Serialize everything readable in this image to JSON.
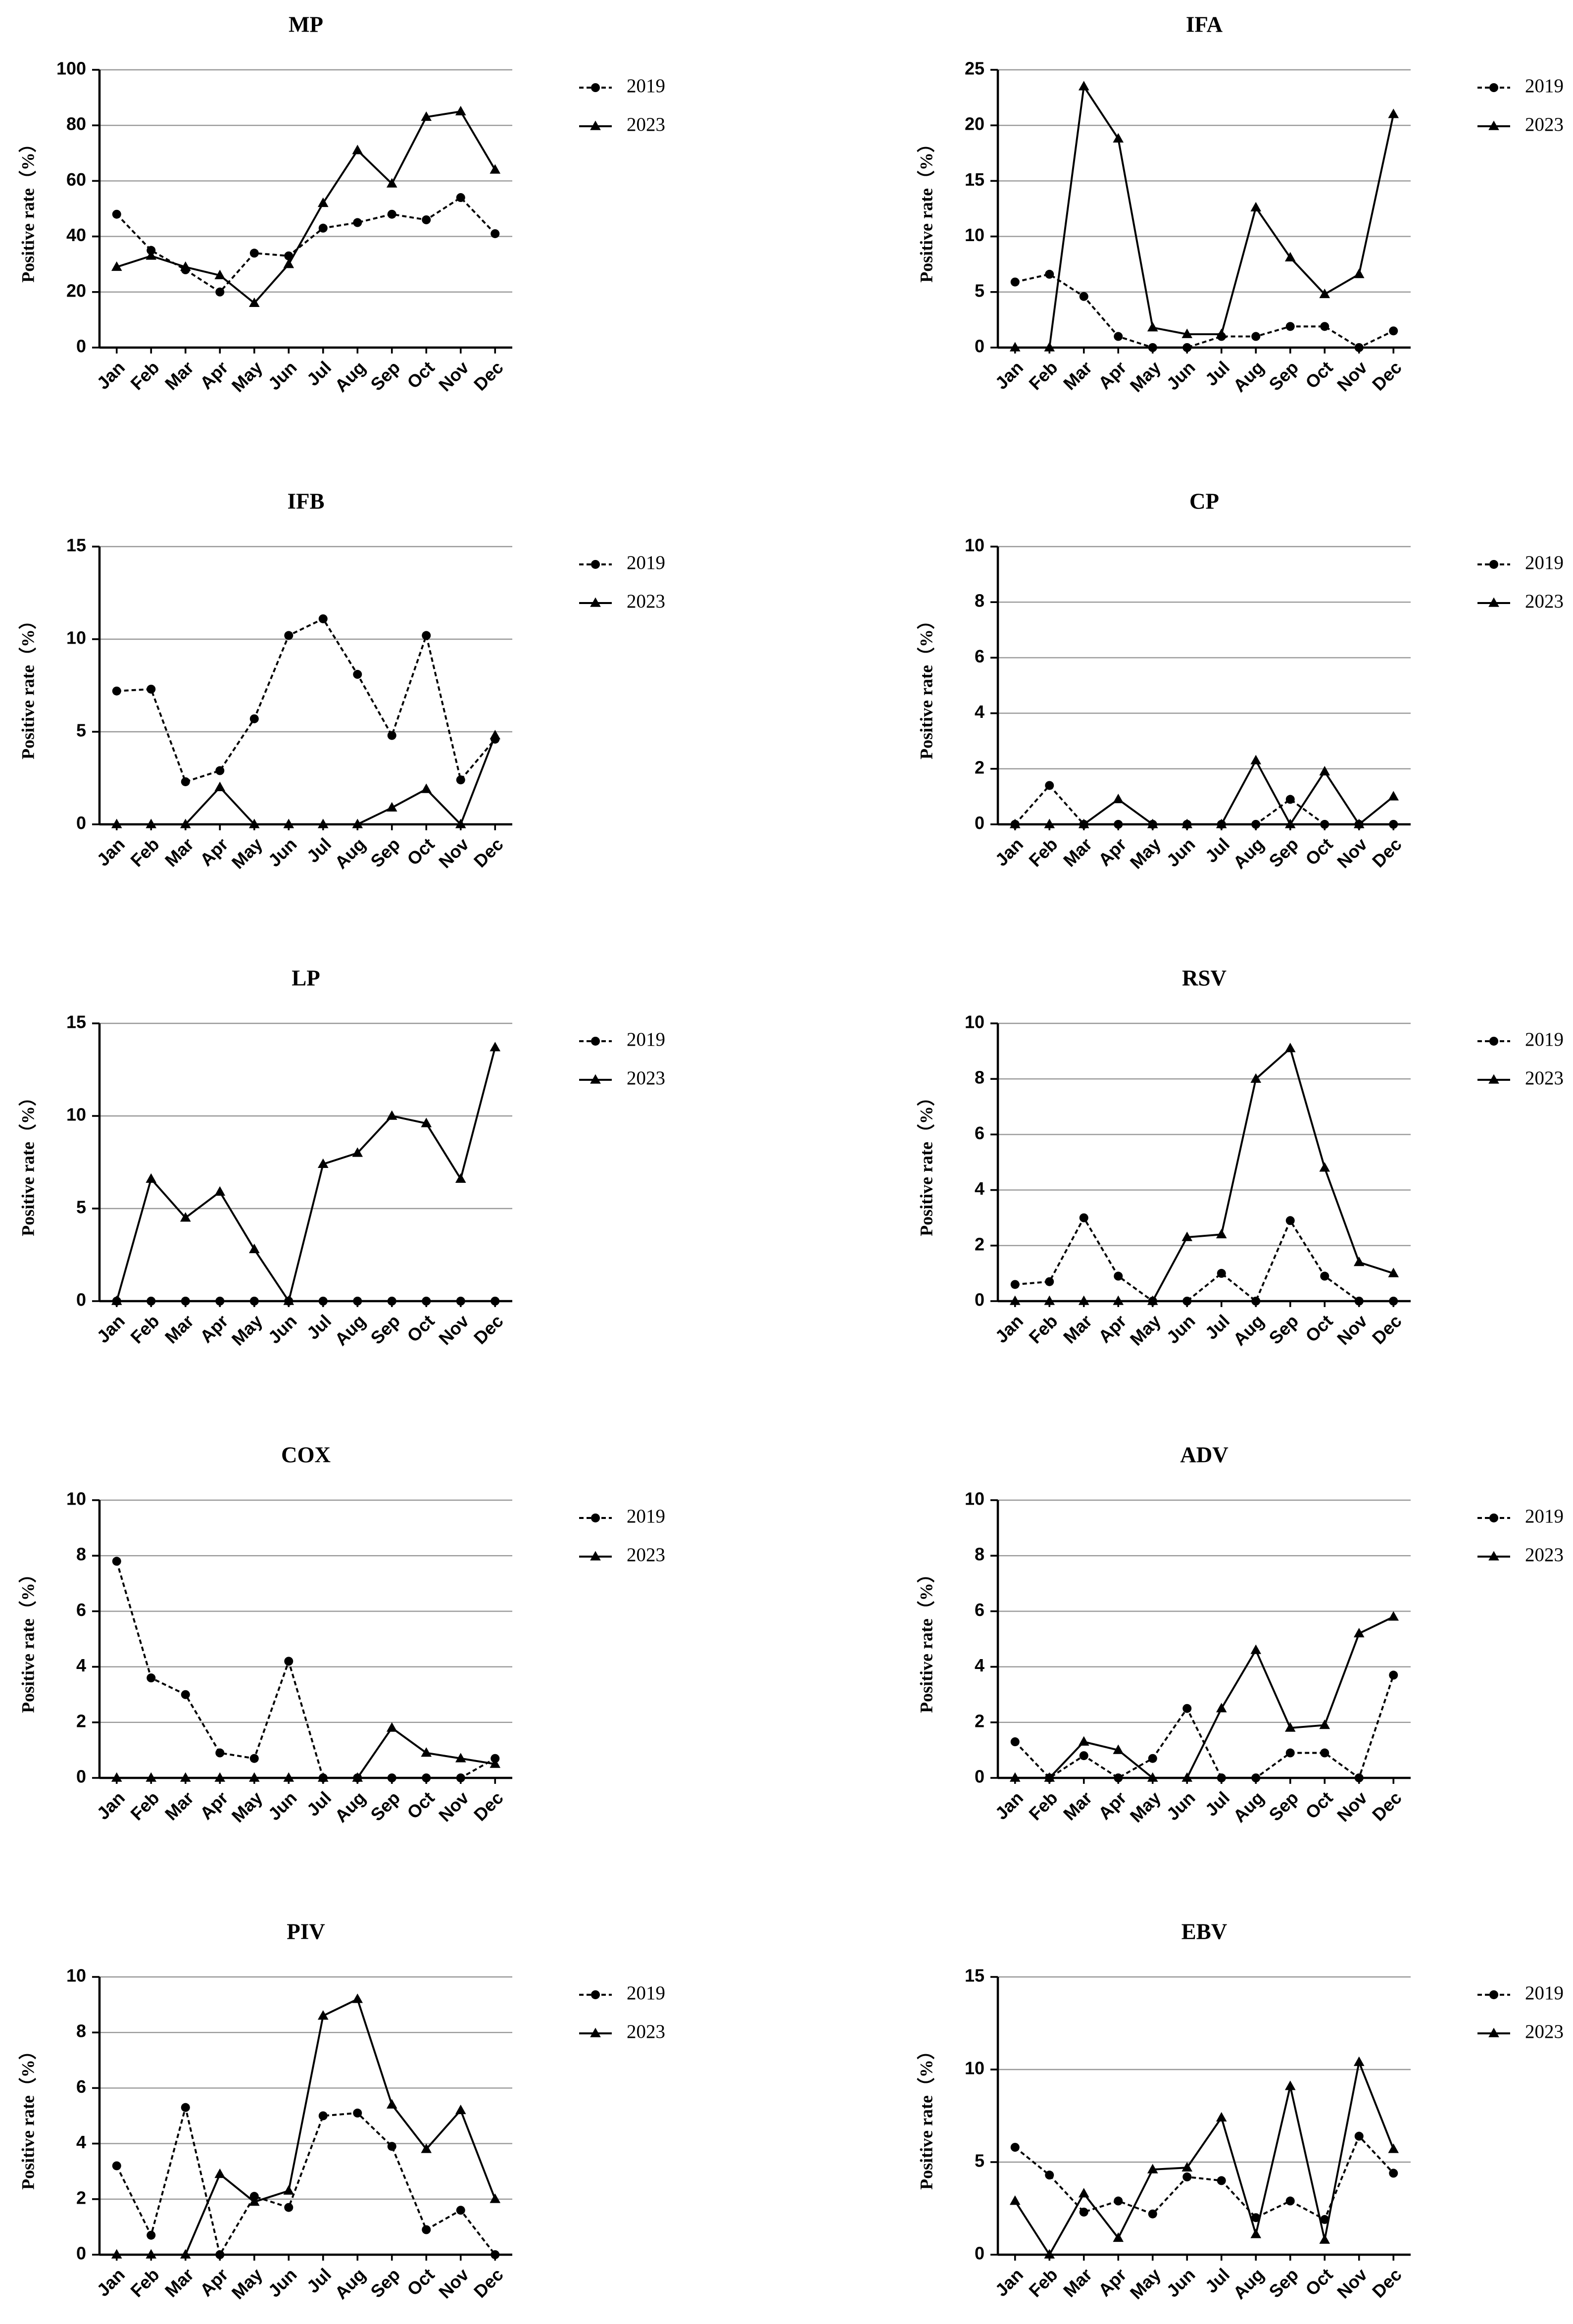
{
  "chart_data": [
    {
      "type": "line",
      "title": "MP",
      "ylabel": "Positive rate（%）",
      "categories": [
        "Jan",
        "Feb",
        "Mar",
        "Apr",
        "May",
        "Jun",
        "Jul",
        "Aug",
        "Sep",
        "Oct",
        "Nov",
        "Dec"
      ],
      "ylim": [
        0,
        100
      ],
      "yticks": [
        0,
        20,
        40,
        60,
        80,
        100
      ],
      "grid": true,
      "series": [
        {
          "name": "2019",
          "color": "#000000",
          "dashed": true,
          "marker": "circle",
          "values": [
            48,
            35,
            28,
            20,
            34,
            33,
            43,
            45,
            48,
            46,
            54,
            41
          ]
        },
        {
          "name": "2023",
          "color": "#000000",
          "dashed": false,
          "marker": "triangle",
          "values": [
            29,
            33,
            29,
            26,
            16,
            30,
            52,
            71,
            59,
            83,
            85,
            64
          ]
        }
      ]
    },
    {
      "type": "line",
      "title": "IFA",
      "ylabel": "Positive rate（%）",
      "categories": [
        "Jan",
        "Feb",
        "Mar",
        "Apr",
        "May",
        "Jun",
        "Jul",
        "Aug",
        "Sep",
        "Oct",
        "Nov",
        "Dec"
      ],
      "ylim": [
        0,
        25
      ],
      "yticks": [
        0,
        5,
        10,
        15,
        20,
        25
      ],
      "grid": true,
      "series": [
        {
          "name": "2019",
          "color": "#000000",
          "dashed": true,
          "marker": "circle",
          "values": [
            5.9,
            6.6,
            4.6,
            1.0,
            0,
            0,
            1.0,
            1.0,
            1.9,
            1.9,
            0,
            1.5
          ]
        },
        {
          "name": "2023",
          "color": "#000000",
          "dashed": false,
          "marker": "triangle",
          "values": [
            0,
            0,
            23.5,
            18.8,
            1.8,
            1.2,
            1.2,
            12.6,
            8.1,
            4.8,
            6.6,
            21
          ]
        }
      ]
    },
    {
      "type": "line",
      "title": "IFB",
      "ylabel": "Positive rate（%）",
      "categories": [
        "Jan",
        "Feb",
        "Mar",
        "Apr",
        "May",
        "Jun",
        "Jul",
        "Aug",
        "Sep",
        "Oct",
        "Nov",
        "Dec"
      ],
      "ylim": [
        0,
        15
      ],
      "yticks": [
        0,
        5,
        10,
        15
      ],
      "grid": true,
      "series": [
        {
          "name": "2019",
          "color": "#000000",
          "dashed": true,
          "marker": "circle",
          "values": [
            7.2,
            7.3,
            2.3,
            2.9,
            5.7,
            10.2,
            11.1,
            8.1,
            4.8,
            10.2,
            2.4,
            4.6
          ]
        },
        {
          "name": "2023",
          "color": "#000000",
          "dashed": false,
          "marker": "triangle",
          "values": [
            0,
            0,
            0,
            2.0,
            0,
            0,
            0,
            0,
            0.9,
            1.9,
            0,
            4.8
          ]
        }
      ]
    },
    {
      "type": "line",
      "title": "CP",
      "ylabel": "Positive rate（%）",
      "categories": [
        "Jan",
        "Feb",
        "Mar",
        "Apr",
        "May",
        "Jun",
        "Jul",
        "Aug",
        "Sep",
        "Oct",
        "Nov",
        "Dec"
      ],
      "ylim": [
        0,
        10
      ],
      "yticks": [
        0,
        2,
        4,
        6,
        8,
        10
      ],
      "grid": true,
      "series": [
        {
          "name": "2019",
          "color": "#000000",
          "dashed": true,
          "marker": "circle",
          "values": [
            0,
            1.4,
            0,
            0,
            0,
            0,
            0,
            0,
            0.9,
            0,
            0,
            0
          ]
        },
        {
          "name": "2023",
          "color": "#000000",
          "dashed": false,
          "marker": "triangle",
          "values": [
            0,
            0,
            0,
            0.9,
            0,
            0,
            0,
            2.3,
            0,
            1.9,
            0,
            1.0
          ]
        }
      ]
    },
    {
      "type": "line",
      "title": "LP",
      "ylabel": "Positive rate（%）",
      "categories": [
        "Jan",
        "Feb",
        "Mar",
        "Apr",
        "May",
        "Jun",
        "Jul",
        "Aug",
        "Sep",
        "Oct",
        "Nov",
        "Dec"
      ],
      "ylim": [
        0,
        15
      ],
      "yticks": [
        0,
        5,
        10,
        15
      ],
      "grid": true,
      "series": [
        {
          "name": "2019",
          "color": "#000000",
          "dashed": true,
          "marker": "circle",
          "values": [
            0,
            0,
            0,
            0,
            0,
            0,
            0,
            0,
            0,
            0,
            0,
            0
          ]
        },
        {
          "name": "2023",
          "color": "#000000",
          "dashed": false,
          "marker": "triangle",
          "values": [
            0,
            6.6,
            4.5,
            5.9,
            2.8,
            0,
            7.4,
            8.0,
            10.0,
            9.6,
            6.6,
            13.7
          ]
        }
      ]
    },
    {
      "type": "line",
      "title": "RSV",
      "ylabel": "Positive rate（%）",
      "categories": [
        "Jan",
        "Feb",
        "Mar",
        "Apr",
        "May",
        "Jun",
        "Jul",
        "Aug",
        "Sep",
        "Oct",
        "Nov",
        "Dec"
      ],
      "ylim": [
        0,
        10
      ],
      "yticks": [
        0,
        2,
        4,
        6,
        8,
        10
      ],
      "grid": true,
      "series": [
        {
          "name": "2019",
          "color": "#000000",
          "dashed": true,
          "marker": "circle",
          "values": [
            0.6,
            0.7,
            3.0,
            0.9,
            0,
            0,
            1.0,
            0,
            2.9,
            0.9,
            0,
            0
          ]
        },
        {
          "name": "2023",
          "color": "#000000",
          "dashed": false,
          "marker": "triangle",
          "values": [
            0,
            0,
            0,
            0,
            0,
            2.3,
            2.4,
            8.0,
            9.1,
            4.8,
            1.4,
            1.0
          ]
        }
      ]
    },
    {
      "type": "line",
      "title": "COX",
      "ylabel": "Positive rate（%）",
      "categories": [
        "Jan",
        "Feb",
        "Mar",
        "Apr",
        "May",
        "Jun",
        "Jul",
        "Aug",
        "Sep",
        "Oct",
        "Nov",
        "Dec"
      ],
      "ylim": [
        0,
        10
      ],
      "yticks": [
        0,
        2,
        4,
        6,
        8,
        10
      ],
      "grid": true,
      "series": [
        {
          "name": "2019",
          "color": "#000000",
          "dashed": true,
          "marker": "circle",
          "values": [
            7.8,
            3.6,
            3.0,
            0.9,
            0.7,
            4.2,
            0,
            0,
            0,
            0,
            0,
            0.7
          ]
        },
        {
          "name": "2023",
          "color": "#000000",
          "dashed": false,
          "marker": "triangle",
          "values": [
            0,
            0,
            0,
            0,
            0,
            0,
            0,
            0,
            1.8,
            0.9,
            0.7,
            0.5
          ]
        }
      ]
    },
    {
      "type": "line",
      "title": "ADV",
      "ylabel": "Positive rate（%）",
      "categories": [
        "Jan",
        "Feb",
        "Mar",
        "Apr",
        "May",
        "Jun",
        "Jul",
        "Aug",
        "Sep",
        "Oct",
        "Nov",
        "Dec"
      ],
      "ylim": [
        0,
        10
      ],
      "yticks": [
        0,
        2,
        4,
        6,
        8,
        10
      ],
      "grid": true,
      "series": [
        {
          "name": "2019",
          "color": "#000000",
          "dashed": true,
          "marker": "circle",
          "values": [
            1.3,
            0,
            0.8,
            0,
            0.7,
            2.5,
            0,
            0,
            0.9,
            0.9,
            0,
            3.7
          ]
        },
        {
          "name": "2023",
          "color": "#000000",
          "dashed": false,
          "marker": "triangle",
          "values": [
            0,
            0,
            1.3,
            1.0,
            0,
            0,
            2.5,
            4.6,
            1.8,
            1.9,
            5.2,
            5.8
          ]
        }
      ]
    },
    {
      "type": "line",
      "title": "PIV",
      "ylabel": "Positive rate（%）",
      "categories": [
        "Jan",
        "Feb",
        "Mar",
        "Apr",
        "May",
        "Jun",
        "Jul",
        "Aug",
        "Sep",
        "Oct",
        "Nov",
        "Dec"
      ],
      "ylim": [
        0,
        10
      ],
      "yticks": [
        0,
        2,
        4,
        6,
        8,
        10
      ],
      "grid": true,
      "series": [
        {
          "name": "2019",
          "color": "#000000",
          "dashed": true,
          "marker": "circle",
          "values": [
            3.2,
            0.7,
            5.3,
            0,
            2.1,
            1.7,
            5.0,
            5.1,
            3.9,
            0.9,
            1.6,
            0
          ]
        },
        {
          "name": "2023",
          "color": "#000000",
          "dashed": false,
          "marker": "triangle",
          "values": [
            0,
            0,
            0,
            2.9,
            1.9,
            2.3,
            8.6,
            9.2,
            5.4,
            3.8,
            5.2,
            2.0
          ]
        }
      ]
    },
    {
      "type": "line",
      "title": "EBV",
      "ylabel": "Positive rate（%）",
      "categories": [
        "Jan",
        "Feb",
        "Mar",
        "Apr",
        "May",
        "Jun",
        "Jul",
        "Aug",
        "Sep",
        "Oct",
        "Nov",
        "Dec"
      ],
      "ylim": [
        0,
        15
      ],
      "yticks": [
        0,
        5,
        10,
        15
      ],
      "grid": true,
      "series": [
        {
          "name": "2019",
          "color": "#000000",
          "dashed": true,
          "marker": "circle",
          "values": [
            5.8,
            4.3,
            2.3,
            2.9,
            2.2,
            4.2,
            4.0,
            2.0,
            2.9,
            1.9,
            6.4,
            4.4
          ]
        },
        {
          "name": "2023",
          "color": "#000000",
          "dashed": false,
          "marker": "triangle",
          "values": [
            2.9,
            0,
            3.3,
            0.9,
            4.6,
            4.7,
            7.4,
            1.1,
            9.1,
            0.8,
            10.4,
            5.7
          ]
        }
      ]
    }
  ]
}
